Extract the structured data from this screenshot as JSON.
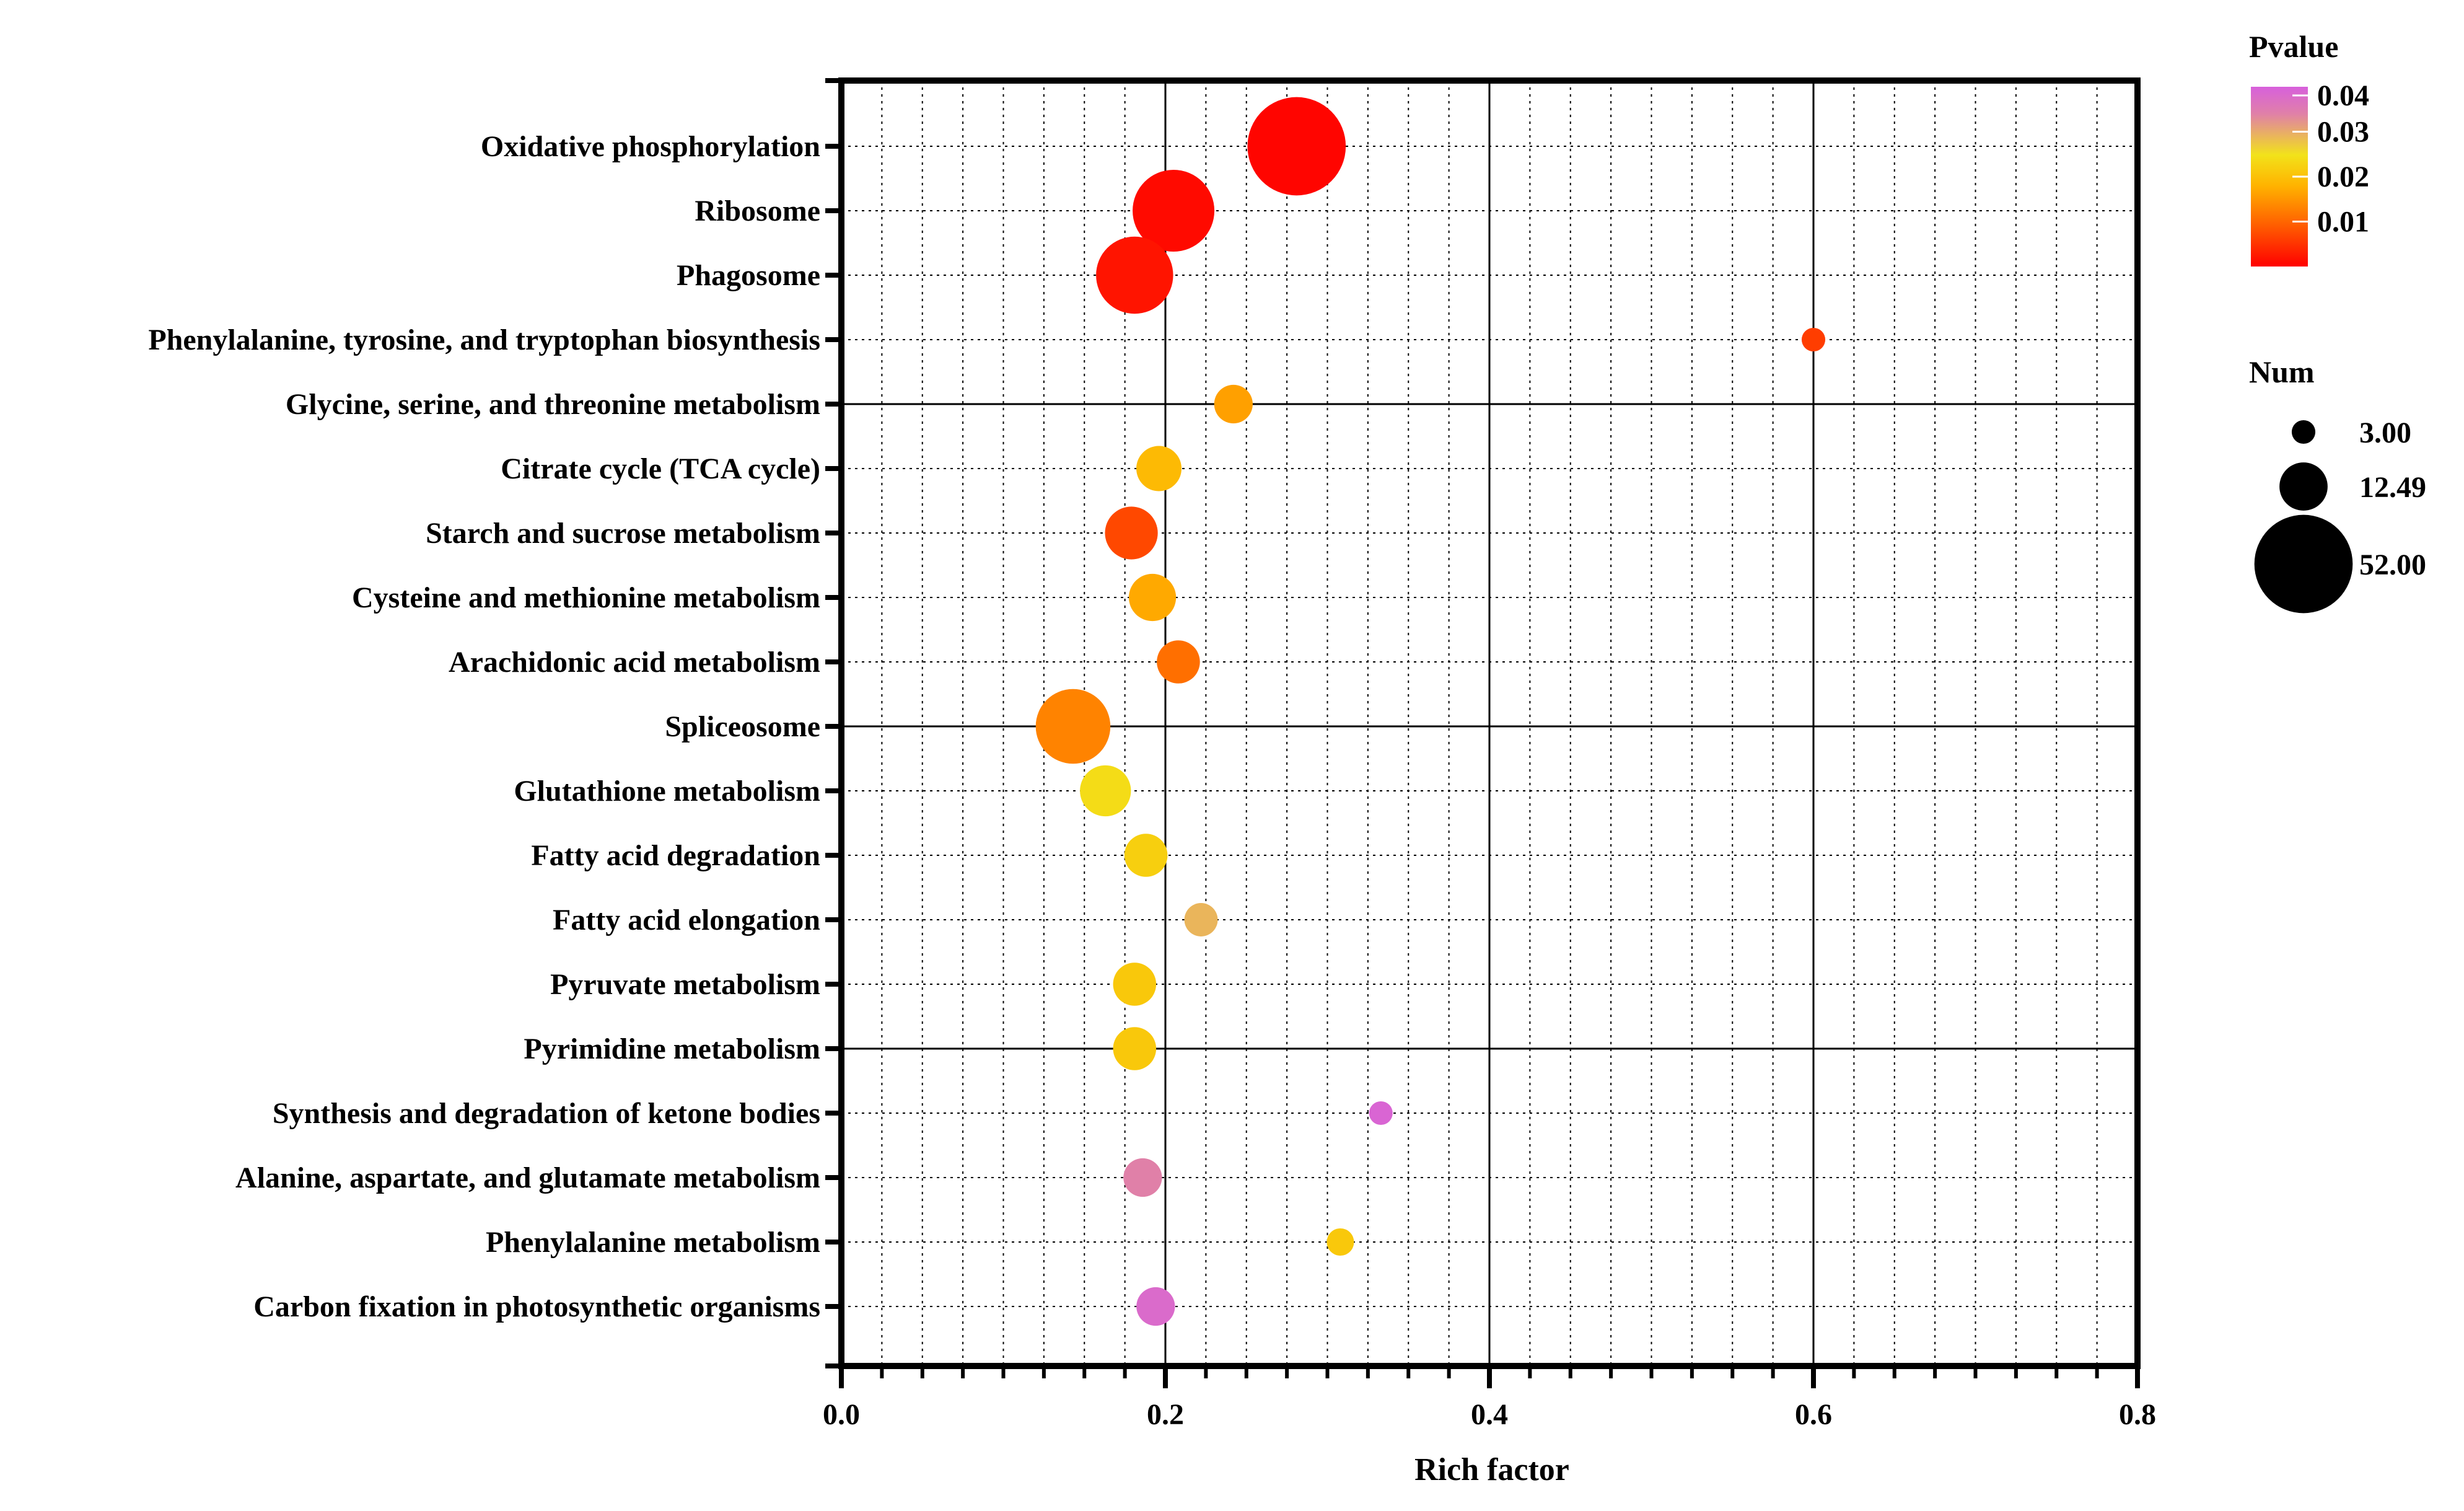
{
  "chart_data": {
    "type": "scatter",
    "title": "",
    "xlabel": "Rich factor",
    "ylabel": "",
    "xlim": [
      0,
      0.8
    ],
    "xticks": [
      "0.0",
      "0.2",
      "0.4",
      "0.6",
      "0.8"
    ],
    "grid": true,
    "categories": [
      "Oxidative phosphorylation",
      "Ribosome",
      "Phagosome",
      "Phenylalanine, tyrosine, and tryptophan biosynthesis",
      "Glycine, serine, and threonine metabolism",
      "Citrate cycle (TCA cycle)",
      "Starch and sucrose metabolism",
      "Cysteine and methionine metabolism",
      "Arachidonic acid metabolism",
      "Spliceosome",
      "Glutathione metabolism",
      "Fatty acid degradation",
      "Fatty acid elongation",
      "Pyruvate metabolism",
      "Pyrimidine metabolism",
      "Synthesis and degradation of ketone bodies",
      "Alanine, aspartate, and glutamate metabolism",
      "Phenylalanine metabolism",
      "Carbon fixation in photosynthetic organisms"
    ],
    "points": [
      {
        "category": "Oxidative phosphorylation",
        "rich_factor": 0.281,
        "num": 52,
        "pvalue": 0.0005
      },
      {
        "category": "Ribosome",
        "rich_factor": 0.205,
        "num": 36,
        "pvalue": 0.001
      },
      {
        "category": "Phagosome",
        "rich_factor": 0.181,
        "num": 32,
        "pvalue": 0.002
      },
      {
        "category": "Phenylalanine, tyrosine, and tryptophan biosynthesis",
        "rich_factor": 0.6,
        "num": 3,
        "pvalue": 0.006
      },
      {
        "category": "Glycine, serine, and threonine metabolism",
        "rich_factor": 0.242,
        "num": 8,
        "pvalue": 0.016
      },
      {
        "category": "Citrate cycle (TCA cycle)",
        "rich_factor": 0.196,
        "num": 11,
        "pvalue": 0.019
      },
      {
        "category": "Starch and sucrose metabolism",
        "rich_factor": 0.179,
        "num": 15,
        "pvalue": 0.007
      },
      {
        "category": "Cysteine and methionine metabolism",
        "rich_factor": 0.192,
        "num": 12,
        "pvalue": 0.017
      },
      {
        "category": "Arachidonic acid metabolism",
        "rich_factor": 0.208,
        "num": 10,
        "pvalue": 0.011
      },
      {
        "category": "Spliceosome",
        "rich_factor": 0.143,
        "num": 30,
        "pvalue": 0.013
      },
      {
        "category": "Glutathione metabolism",
        "rich_factor": 0.163,
        "num": 14,
        "pvalue": 0.024
      },
      {
        "category": "Fatty acid degradation",
        "rich_factor": 0.188,
        "num": 10,
        "pvalue": 0.022
      },
      {
        "category": "Fatty acid elongation",
        "rich_factor": 0.222,
        "num": 6,
        "pvalue": 0.029
      },
      {
        "category": "Pyruvate metabolism",
        "rich_factor": 0.181,
        "num": 10,
        "pvalue": 0.021
      },
      {
        "category": "Pyrimidine metabolism",
        "rich_factor": 0.181,
        "num": 10,
        "pvalue": 0.021
      },
      {
        "category": "Synthesis and degradation of ketone bodies",
        "rich_factor": 0.333,
        "num": 3,
        "pvalue": 0.039
      },
      {
        "category": "Alanine, aspartate, and glutamate metabolism",
        "rich_factor": 0.186,
        "num": 8,
        "pvalue": 0.034
      },
      {
        "category": "Phenylalanine metabolism",
        "rich_factor": 0.308,
        "num": 4,
        "pvalue": 0.021
      },
      {
        "category": "Carbon fixation in photosynthetic organisms",
        "rich_factor": 0.194,
        "num": 8,
        "pvalue": 0.038
      }
    ],
    "legend": {
      "color_title": "Pvalue",
      "color_ticks": [
        "0.04",
        "0.03",
        "0.02",
        "0.01"
      ],
      "color_range": [
        0,
        0.04
      ],
      "color_stops": [
        "#ff0000",
        "#ff5a00",
        "#ffb300",
        "#f2e21a",
        "#e080a8",
        "#d760dc"
      ],
      "size_title": "Num",
      "size_values": [
        3,
        12.49,
        52
      ],
      "size_labels": [
        "3.00",
        "12.49",
        "52.00"
      ]
    }
  }
}
